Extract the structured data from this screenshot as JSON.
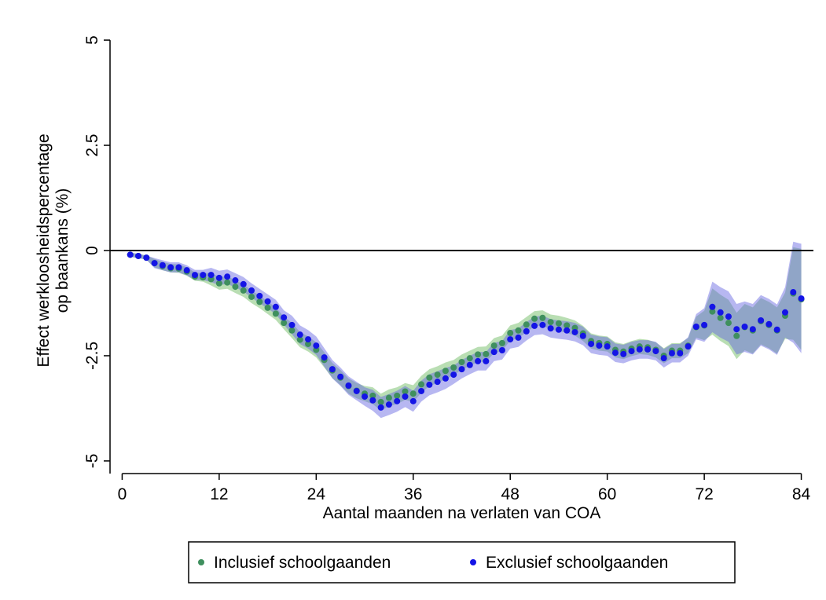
{
  "chart_data": {
    "type": "scatter-band",
    "xlabel": "Aantal maanden na verlaten van COA",
    "ylabel": [
      "Effect werkloosheidspercentage",
      "op baankans (%)"
    ],
    "x": [
      1,
      2,
      3,
      4,
      5,
      6,
      7,
      8,
      9,
      10,
      11,
      12,
      13,
      14,
      15,
      16,
      17,
      18,
      19,
      20,
      21,
      22,
      23,
      24,
      25,
      26,
      27,
      28,
      29,
      30,
      31,
      32,
      33,
      34,
      35,
      36,
      37,
      38,
      39,
      40,
      41,
      42,
      43,
      44,
      45,
      46,
      47,
      48,
      49,
      50,
      51,
      52,
      53,
      54,
      55,
      56,
      57,
      58,
      59,
      60,
      61,
      62,
      63,
      64,
      65,
      66,
      67,
      68,
      69,
      70,
      71,
      72,
      73,
      74,
      75,
      76,
      77,
      78,
      79,
      80,
      81,
      82,
      83,
      84
    ],
    "xlim": [
      -1.5,
      85.5
    ],
    "xticks": [
      0,
      12,
      24,
      36,
      48,
      60,
      72,
      84
    ],
    "ylim": [
      -5.3,
      5.3
    ],
    "yticks": [
      -5,
      -2.5,
      0,
      2.5,
      5
    ],
    "reference_line": 0,
    "legend": "bottom",
    "series": [
      {
        "name": "Inclusief schoolgaanden",
        "color": "#3f8f5e",
        "band_color": "#b9deb3",
        "values": [
          -0.1,
          -0.13,
          -0.17,
          -0.3,
          -0.37,
          -0.42,
          -0.43,
          -0.5,
          -0.62,
          -0.64,
          -0.68,
          -0.78,
          -0.76,
          -0.86,
          -0.95,
          -1.1,
          -1.22,
          -1.36,
          -1.5,
          -1.72,
          -1.9,
          -2.12,
          -2.22,
          -2.36,
          -2.6,
          -2.85,
          -3.02,
          -3.22,
          -3.33,
          -3.4,
          -3.45,
          -3.6,
          -3.5,
          -3.45,
          -3.35,
          -3.4,
          -3.18,
          -3.02,
          -2.95,
          -2.86,
          -2.78,
          -2.65,
          -2.56,
          -2.47,
          -2.46,
          -2.26,
          -2.2,
          -1.96,
          -1.9,
          -1.76,
          -1.62,
          -1.6,
          -1.7,
          -1.73,
          -1.78,
          -1.84,
          -1.97,
          -2.15,
          -2.2,
          -2.22,
          -2.36,
          -2.4,
          -2.33,
          -2.28,
          -2.3,
          -2.36,
          -2.5,
          -2.38,
          -2.38,
          -2.26,
          -1.82,
          -1.78,
          -1.45,
          -1.6,
          -1.72,
          -2.03,
          -1.82,
          -1.9,
          -1.68,
          -1.77,
          -1.9,
          -1.55,
          -1.02,
          -1.16
        ],
        "errors": [
          0.05,
          0.05,
          0.05,
          0.1,
          0.1,
          0.1,
          0.1,
          0.1,
          0.1,
          0.1,
          0.15,
          0.15,
          0.15,
          0.15,
          0.15,
          0.15,
          0.15,
          0.15,
          0.15,
          0.15,
          0.18,
          0.18,
          0.18,
          0.18,
          0.18,
          0.18,
          0.18,
          0.18,
          0.18,
          0.18,
          0.2,
          0.2,
          0.2,
          0.2,
          0.2,
          0.2,
          0.2,
          0.2,
          0.2,
          0.2,
          0.18,
          0.18,
          0.18,
          0.18,
          0.18,
          0.18,
          0.18,
          0.18,
          0.18,
          0.18,
          0.18,
          0.18,
          0.18,
          0.18,
          0.18,
          0.18,
          0.18,
          0.18,
          0.18,
          0.18,
          0.18,
          0.18,
          0.18,
          0.18,
          0.18,
          0.18,
          0.18,
          0.18,
          0.18,
          0.18,
          0.25,
          0.35,
          0.55,
          0.55,
          0.55,
          0.55,
          0.55,
          0.55,
          0.55,
          0.55,
          0.55,
          0.55,
          1.1,
          1.2
        ]
      },
      {
        "name": "Exclusief schoolgaanden",
        "color": "#1414e6",
        "band_color": "rgba(95,95,225,0.45)",
        "values": [
          -0.1,
          -0.13,
          -0.17,
          -0.3,
          -0.35,
          -0.4,
          -0.4,
          -0.47,
          -0.58,
          -0.58,
          -0.58,
          -0.65,
          -0.62,
          -0.71,
          -0.8,
          -0.95,
          -1.08,
          -1.21,
          -1.34,
          -1.59,
          -1.77,
          -2.0,
          -2.11,
          -2.26,
          -2.54,
          -2.82,
          -3.0,
          -3.21,
          -3.34,
          -3.47,
          -3.56,
          -3.73,
          -3.66,
          -3.58,
          -3.47,
          -3.58,
          -3.34,
          -3.19,
          -3.12,
          -3.04,
          -2.95,
          -2.82,
          -2.72,
          -2.63,
          -2.63,
          -2.41,
          -2.37,
          -2.11,
          -2.07,
          -1.92,
          -1.79,
          -1.77,
          -1.85,
          -1.88,
          -1.9,
          -1.94,
          -2.03,
          -2.22,
          -2.26,
          -2.28,
          -2.43,
          -2.46,
          -2.39,
          -2.35,
          -2.35,
          -2.39,
          -2.56,
          -2.44,
          -2.44,
          -2.28,
          -1.81,
          -1.77,
          -1.34,
          -1.47,
          -1.57,
          -1.87,
          -1.81,
          -1.87,
          -1.66,
          -1.75,
          -1.88,
          -1.47,
          -0.99,
          -1.14
        ],
        "errors": [
          0.05,
          0.05,
          0.05,
          0.12,
          0.12,
          0.12,
          0.12,
          0.12,
          0.12,
          0.12,
          0.17,
          0.17,
          0.17,
          0.17,
          0.17,
          0.17,
          0.17,
          0.17,
          0.17,
          0.17,
          0.22,
          0.22,
          0.22,
          0.22,
          0.22,
          0.22,
          0.22,
          0.22,
          0.22,
          0.22,
          0.25,
          0.25,
          0.25,
          0.25,
          0.25,
          0.25,
          0.25,
          0.25,
          0.25,
          0.25,
          0.22,
          0.22,
          0.22,
          0.22,
          0.22,
          0.22,
          0.22,
          0.22,
          0.22,
          0.22,
          0.22,
          0.22,
          0.22,
          0.22,
          0.22,
          0.22,
          0.22,
          0.22,
          0.22,
          0.22,
          0.22,
          0.22,
          0.22,
          0.22,
          0.22,
          0.22,
          0.22,
          0.22,
          0.22,
          0.22,
          0.3,
          0.4,
          0.6,
          0.6,
          0.6,
          0.6,
          0.6,
          0.6,
          0.6,
          0.6,
          0.6,
          0.6,
          1.2,
          1.3
        ]
      }
    ]
  }
}
